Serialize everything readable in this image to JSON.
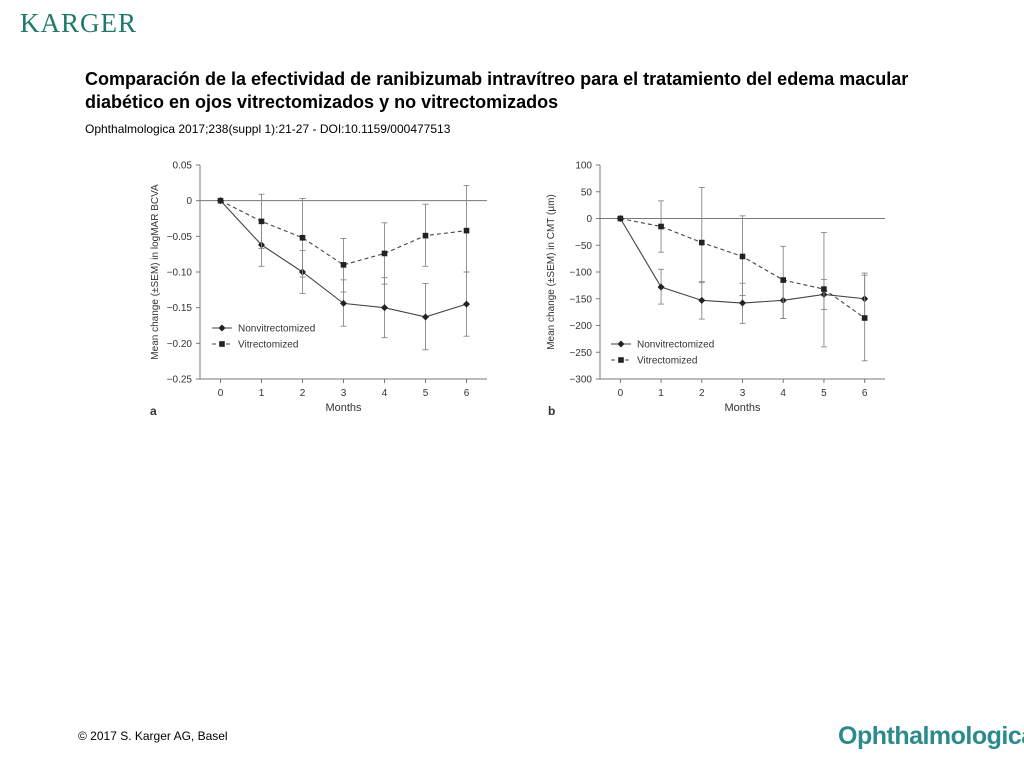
{
  "header": {
    "publisher_logo": "KARGER",
    "title": "Comparación de la efectividad de ranibizumab intravítreo para el tratamiento del edema macular diabético en ojos vitrectomizados y no vitrectomizados",
    "citation": "Ophthalmologica 2017;238(suppl 1):21-27 -  DOI:10.1159/000477513"
  },
  "footer": {
    "copyright": "© 2017 S. Karger AG, Basel",
    "journal_logo": "Ophthalmologica"
  },
  "colors": {
    "logo": "#1f7a6b",
    "journal": "#2a8a8c",
    "axes": "#777777",
    "series": "#444444"
  },
  "chart_data": [
    {
      "panel": "a",
      "type": "line",
      "xlabel": "Months",
      "ylabel": "Mean change (±SEM) in logMAR BCVA",
      "x": [
        0,
        1,
        2,
        3,
        4,
        5,
        6
      ],
      "xlim": [
        -0.5,
        6.5
      ],
      "ylim": [
        -0.25,
        0.05
      ],
      "yticks": [
        0.05,
        0,
        -0.05,
        -0.1,
        -0.15,
        -0.2,
        -0.25
      ],
      "ytick_labels": [
        "0.05",
        "0",
        "−0.05",
        "−0.10",
        "−0.15",
        "−0.20",
        "−0.25"
      ],
      "reference_line": 0,
      "legend_position": "bottom-left",
      "series": [
        {
          "name": "Nonvitrectomized",
          "marker": "diamond",
          "style": "solid",
          "values": [
            0,
            -0.062,
            -0.1,
            -0.144,
            -0.15,
            -0.163,
            -0.145
          ],
          "err_low": [
            0,
            0.03,
            0.03,
            0.032,
            0.042,
            0.046,
            0.045
          ],
          "err_high": [
            0,
            0.03,
            0.03,
            0.033,
            0.042,
            0.047,
            0.045
          ]
        },
        {
          "name": "Vitrectomized",
          "marker": "square",
          "style": "dashed",
          "values": [
            0,
            -0.029,
            -0.052,
            -0.09,
            -0.074,
            -0.049,
            -0.042
          ],
          "err_low": [
            0,
            0.038,
            0.055,
            0.038,
            0.043,
            0.043,
            0.058
          ],
          "err_high": [
            0,
            0.038,
            0.055,
            0.037,
            0.043,
            0.044,
            0.063
          ]
        }
      ]
    },
    {
      "panel": "b",
      "type": "line",
      "xlabel": "Months",
      "ylabel": "Mean change (±SEM) in CMT (µm)",
      "x": [
        0,
        1,
        2,
        3,
        4,
        5,
        6
      ],
      "xlim": [
        -0.5,
        6.5
      ],
      "ylim": [
        -300,
        100
      ],
      "yticks": [
        100,
        50,
        0,
        -50,
        -100,
        -150,
        -200,
        -250,
        -300
      ],
      "ytick_labels": [
        "100",
        "50",
        "0",
        "−50",
        "−100",
        "−150",
        "−200",
        "−250",
        "−300"
      ],
      "reference_line": 0,
      "legend_position": "bottom-left",
      "series": [
        {
          "name": "Nonvitrectomized",
          "marker": "diamond",
          "style": "solid",
          "values": [
            0,
            -128,
            -153,
            -158,
            -153,
            -142,
            -150
          ],
          "err_low": [
            0,
            32,
            35,
            38,
            34,
            28,
            38
          ],
          "err_high": [
            0,
            33,
            35,
            37,
            34,
            28,
            48
          ]
        },
        {
          "name": "Vitrectomized",
          "marker": "square",
          "style": "dashed",
          "values": [
            0,
            -15,
            -45,
            -71,
            -115,
            -132,
            -186
          ],
          "err_low": [
            0,
            48,
            75,
            73,
            72,
            108,
            80
          ],
          "err_high": [
            0,
            48,
            103,
            76,
            63,
            106,
            80
          ]
        }
      ]
    }
  ]
}
